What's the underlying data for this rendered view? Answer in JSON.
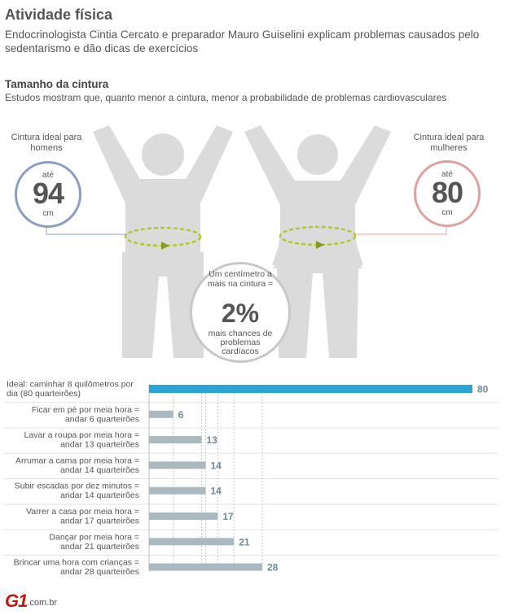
{
  "header": {
    "title": "Atividade física",
    "subtitle": "Endocrinologista Cintia Cercato e preparador Mauro Guiselini explicam problemas causados pelo sedentarismo e dão dicas de exercícios"
  },
  "waist": {
    "title": "Tamanho da cintura",
    "subtitle": "Estudos mostram que, quanto menor a cintura, menor a probabilidade de problemas cardiovasculares",
    "men": {
      "caption": "Cintura ideal para homens",
      "prefix": "até",
      "value": "94",
      "unit": "cm",
      "color": "#8b9dc3"
    },
    "women": {
      "caption": "Cintura ideal para mulheres",
      "prefix": "até",
      "value": "80",
      "unit": "cm",
      "color": "#e0a0a0"
    },
    "center": {
      "top_text": "Um centímetro a mais na cintura =",
      "value": "2%",
      "bottom_text": "mais chances de problemas cardíacos"
    }
  },
  "chart_data": {
    "type": "bar",
    "orientation": "horizontal",
    "categories": [
      "Ideal: caminhar 8 quilômetros por dia (80 quarteirões)",
      "Ficar em pé por meia hora = andar 6 quarteirões",
      "Lavar a roupa por meia hora = andar 13 quarteirões",
      "Arrumar a cama por meia hora = andar 14 quarteirões",
      "Subir escadas por dez minutos = andar 14 quarteirões",
      "Varrer a casa por meia hora = andar 17 quarteirões",
      "Dançar por meia hora = andar 21 quarteirões",
      "Brincar uma hora com crianças = andar 28 quarteirões"
    ],
    "values": [
      80,
      6,
      13,
      14,
      14,
      17,
      21,
      28
    ],
    "value_labels": [
      "80",
      "6",
      "13",
      "14",
      "14",
      "17",
      "21",
      "28"
    ],
    "xlim": [
      0,
      80
    ],
    "colors": {
      "highlight": "#2aa4d5",
      "bar": "#aab8c0",
      "label": "#6f8a99",
      "guide": "#c8c8c8"
    }
  },
  "footer": {
    "logo": "G1",
    "domain": ".com.br"
  }
}
